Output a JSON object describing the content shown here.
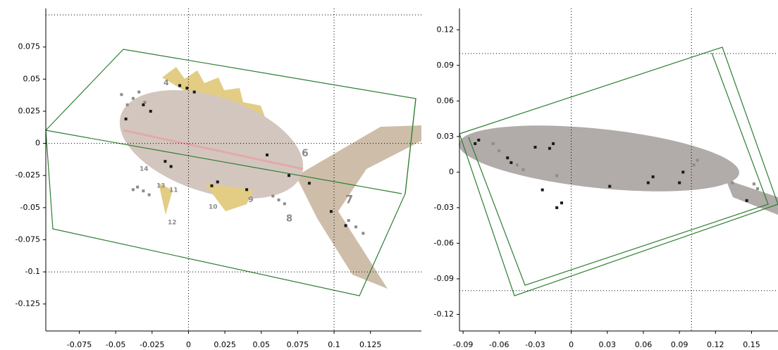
{
  "chart_data": [
    {
      "type": "scatter",
      "xlim": [
        -0.098,
        0.16
      ],
      "ylim": [
        -0.146,
        0.105
      ],
      "xticks": [
        -0.075,
        -0.05,
        -0.025,
        0,
        0.025,
        0.05,
        0.075,
        0.1,
        0.125
      ],
      "yticks": [
        0.075,
        0.05,
        0.025,
        0,
        -0.025,
        -0.05,
        -0.075,
        -0.1,
        -0.125
      ],
      "xgrid": [
        0,
        0.1
      ],
      "ygrid": [
        0.1,
        0,
        -0.1
      ],
      "annotations": [
        "4",
        "6",
        "7",
        "8",
        "9",
        "10",
        "11",
        "12",
        "13",
        "14"
      ],
      "series": [
        {
          "name": "gray",
          "color": "#8c8c8c",
          "x": [
            -0.038,
            -0.042,
            -0.034,
            -0.046,
            -0.03,
            -0.031,
            -0.035,
            -0.027,
            -0.038,
            0.115,
            0.11,
            0.12,
            0.062,
            0.058,
            0.066
          ],
          "y": [
            0.035,
            0.03,
            0.04,
            0.038,
            0.032,
            -0.037,
            -0.034,
            -0.04,
            -0.036,
            -0.065,
            -0.06,
            -0.07,
            -0.044,
            -0.041,
            -0.047
          ]
        },
        {
          "name": "black",
          "color": "#1a1a1a",
          "x": [
            -0.031,
            -0.026,
            -0.001,
            0.004,
            -0.006,
            -0.016,
            -0.012,
            0.016,
            0.02,
            0.04,
            0.054,
            0.069,
            0.083,
            0.098,
            0.108,
            -0.043
          ],
          "y": [
            0.03,
            0.025,
            0.043,
            0.04,
            0.045,
            -0.014,
            -0.018,
            -0.033,
            -0.03,
            -0.036,
            -0.009,
            -0.025,
            -0.031,
            -0.053,
            -0.064,
            0.019
          ]
        }
      ]
    },
    {
      "type": "scatter",
      "xlim": [
        -0.093,
        0.172
      ],
      "ylim": [
        -0.134,
        0.138
      ],
      "xticks": [
        -0.09,
        -0.06,
        -0.03,
        0,
        0.03,
        0.06,
        0.09,
        0.12,
        0.15
      ],
      "yticks": [
        0.12,
        0.09,
        0.06,
        0.03,
        0,
        -0.03,
        -0.06,
        -0.09,
        -0.12
      ],
      "xgrid": [
        0,
        0.1
      ],
      "ygrid": [
        0.1,
        -0.1
      ],
      "series": [
        {
          "name": "gray",
          "color": "#8c8c8c",
          "x": [
            -0.065,
            -0.06,
            -0.045,
            -0.04,
            0.102,
            0.105,
            0.134,
            0.155,
            0.152,
            -0.012
          ],
          "y": [
            0.024,
            0.018,
            0.006,
            0.002,
            0.006,
            0.01,
            -0.009,
            -0.014,
            -0.01,
            -0.003
          ]
        },
        {
          "name": "black",
          "color": "#1a1a1a",
          "x": [
            -0.077,
            -0.08,
            -0.053,
            -0.05,
            -0.03,
            -0.015,
            -0.018,
            -0.012,
            -0.008,
            -0.024,
            0.032,
            0.064,
            0.068,
            0.09,
            0.093,
            0.146
          ],
          "y": [
            0.027,
            0.024,
            0.012,
            0.008,
            0.021,
            0.024,
            0.02,
            -0.03,
            -0.026,
            -0.015,
            -0.012,
            -0.009,
            -0.004,
            -0.009,
            0,
            -0.024
          ]
        }
      ]
    }
  ]
}
